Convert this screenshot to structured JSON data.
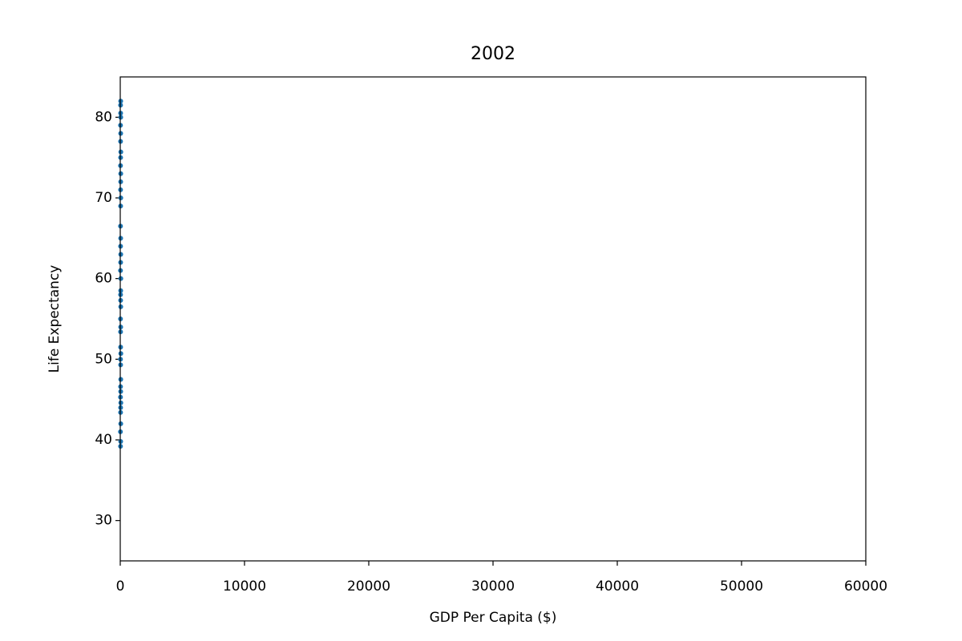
{
  "chart_data": {
    "type": "scatter",
    "title": "2002",
    "x_label": "GDP Per Capita ($)",
    "y_label": "Life Expectancy",
    "xlim": [
      0,
      60000
    ],
    "ylim": [
      25,
      85
    ],
    "xticks": [
      0,
      10000,
      20000,
      30000,
      40000,
      50000,
      60000
    ],
    "yticks": [
      30,
      40,
      50,
      60,
      70,
      80
    ],
    "grid": false,
    "series": [
      {
        "color": "#1f77b4",
        "x": [
          20,
          35,
          15,
          40,
          25,
          30,
          45,
          20,
          35,
          25,
          40,
          30,
          20,
          45,
          30,
          25,
          35,
          20,
          40,
          30,
          25,
          35,
          45,
          20,
          30,
          40,
          25,
          35,
          20,
          30,
          45,
          25,
          35,
          40,
          20,
          30,
          45,
          25,
          35,
          20,
          40,
          30,
          25,
          35
        ],
        "y": [
          39.2,
          39.8,
          41.0,
          42.0,
          43.4,
          44.0,
          44.6,
          45.3,
          46.0,
          46.6,
          47.5,
          49.3,
          50.0,
          50.7,
          51.5,
          53.4,
          54.0,
          55.0,
          56.5,
          57.3,
          58.0,
          58.5,
          60.0,
          61.0,
          62.0,
          63.0,
          64.0,
          65.0,
          66.5,
          69.0,
          70.0,
          71.0,
          72.0,
          73.0,
          74.0,
          75.0,
          75.7,
          77.0,
          78.0,
          79.0,
          80.0,
          80.5,
          81.5,
          82.0
        ]
      }
    ]
  }
}
